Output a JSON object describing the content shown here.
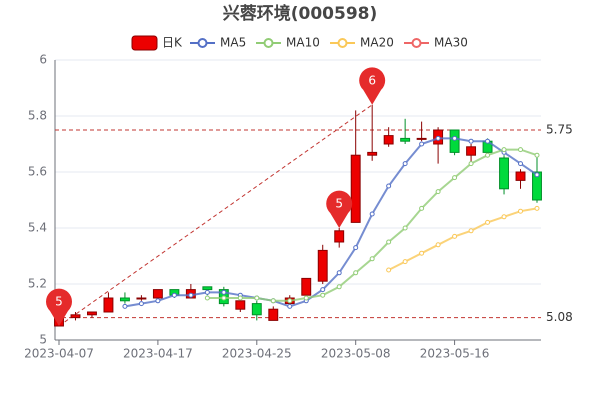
{
  "chart_data": {
    "type": "candlestick",
    "title": "兴蓉环境(000598)",
    "categories": [
      "2023-04-07",
      null,
      null,
      null,
      null,
      null,
      "2023-04-17",
      null,
      null,
      null,
      null,
      null,
      "2023-04-25",
      null,
      null,
      null,
      null,
      null,
      "2023-05-08",
      null,
      null,
      null,
      null,
      null,
      "2023-05-16",
      null,
      null,
      null,
      null,
      null
    ],
    "series": [
      {
        "name": "日K",
        "type": "candlestick",
        "color": "#ec0000",
        "down_color": "#00da3c",
        "open": [
          5.05,
          5.08,
          5.09,
          5.1,
          5.15,
          5.15,
          5.15,
          5.18,
          5.15,
          5.19,
          5.18,
          5.11,
          5.13,
          5.07,
          5.13,
          5.16,
          5.21,
          5.35,
          5.42,
          5.66,
          5.7,
          5.72,
          5.72,
          5.7,
          5.75,
          5.66,
          5.71,
          5.65,
          5.57,
          5.6
        ],
        "close": [
          5.1,
          5.09,
          5.1,
          5.15,
          5.14,
          5.15,
          5.18,
          5.16,
          5.18,
          5.18,
          5.13,
          5.14,
          5.09,
          5.11,
          5.15,
          5.22,
          5.32,
          5.39,
          5.66,
          5.67,
          5.73,
          5.71,
          5.72,
          5.75,
          5.67,
          5.69,
          5.67,
          5.54,
          5.6,
          5.5
        ],
        "low": [
          5.05,
          5.07,
          5.08,
          5.1,
          5.13,
          5.14,
          5.14,
          5.15,
          5.15,
          5.16,
          5.12,
          5.1,
          5.07,
          5.07,
          5.12,
          5.16,
          5.2,
          5.33,
          5.42,
          5.64,
          5.69,
          5.7,
          5.71,
          5.63,
          5.66,
          5.63,
          5.66,
          5.52,
          5.54,
          5.49
        ],
        "high": [
          5.12,
          5.1,
          5.1,
          5.17,
          5.17,
          5.16,
          5.18,
          5.18,
          5.2,
          5.19,
          5.19,
          5.15,
          5.14,
          5.12,
          5.16,
          5.22,
          5.34,
          5.4,
          5.82,
          5.84,
          5.76,
          5.79,
          5.78,
          5.76,
          5.75,
          5.7,
          5.72,
          5.66,
          5.61,
          5.66
        ]
      },
      {
        "name": "MA5",
        "type": "line",
        "color": "#5470c6",
        "values": [
          null,
          null,
          null,
          null,
          5.12,
          5.13,
          5.14,
          5.16,
          5.16,
          5.17,
          5.17,
          5.16,
          5.15,
          5.14,
          5.12,
          5.14,
          5.18,
          5.24,
          5.33,
          5.45,
          5.55,
          5.63,
          5.7,
          5.72,
          5.72,
          5.71,
          5.71,
          5.67,
          5.63,
          5.59
        ]
      },
      {
        "name": "MA10",
        "type": "line",
        "color": "#91cc75",
        "values": [
          null,
          null,
          null,
          null,
          null,
          null,
          null,
          null,
          null,
          5.15,
          5.15,
          5.15,
          5.15,
          5.14,
          5.14,
          5.15,
          5.16,
          5.19,
          5.24,
          5.29,
          5.35,
          5.4,
          5.47,
          5.53,
          5.58,
          5.63,
          5.66,
          5.68,
          5.68,
          5.66
        ]
      },
      {
        "name": "MA20",
        "type": "line",
        "color": "#fac858",
        "values": [
          null,
          null,
          null,
          null,
          null,
          null,
          null,
          null,
          null,
          null,
          null,
          null,
          null,
          null,
          null,
          null,
          null,
          null,
          null,
          null,
          5.25,
          5.28,
          5.31,
          5.34,
          5.37,
          5.39,
          5.42,
          5.44,
          5.46,
          5.47
        ]
      },
      {
        "name": "MA30",
        "type": "line",
        "color": "#ee6666",
        "values": [
          null,
          null,
          null,
          null,
          null,
          null,
          null,
          null,
          null,
          null,
          null,
          null,
          null,
          null,
          null,
          null,
          null,
          null,
          null,
          null,
          null,
          null,
          null,
          null,
          null,
          null,
          null,
          null,
          null,
          null
        ]
      }
    ],
    "ylim": [
      5,
      6
    ],
    "yticks": [
      5,
      5.2,
      5.4,
      5.6,
      5.8,
      6
    ],
    "grid": true,
    "mark_lines": [
      5.75,
      5.08
    ],
    "mark_points": [
      {
        "index": 0,
        "value": 5.05,
        "label": "5"
      },
      {
        "index": 19,
        "value": 5.84,
        "label": "6"
      },
      {
        "index": 17,
        "value": 5.4,
        "label": "5"
      }
    ]
  }
}
